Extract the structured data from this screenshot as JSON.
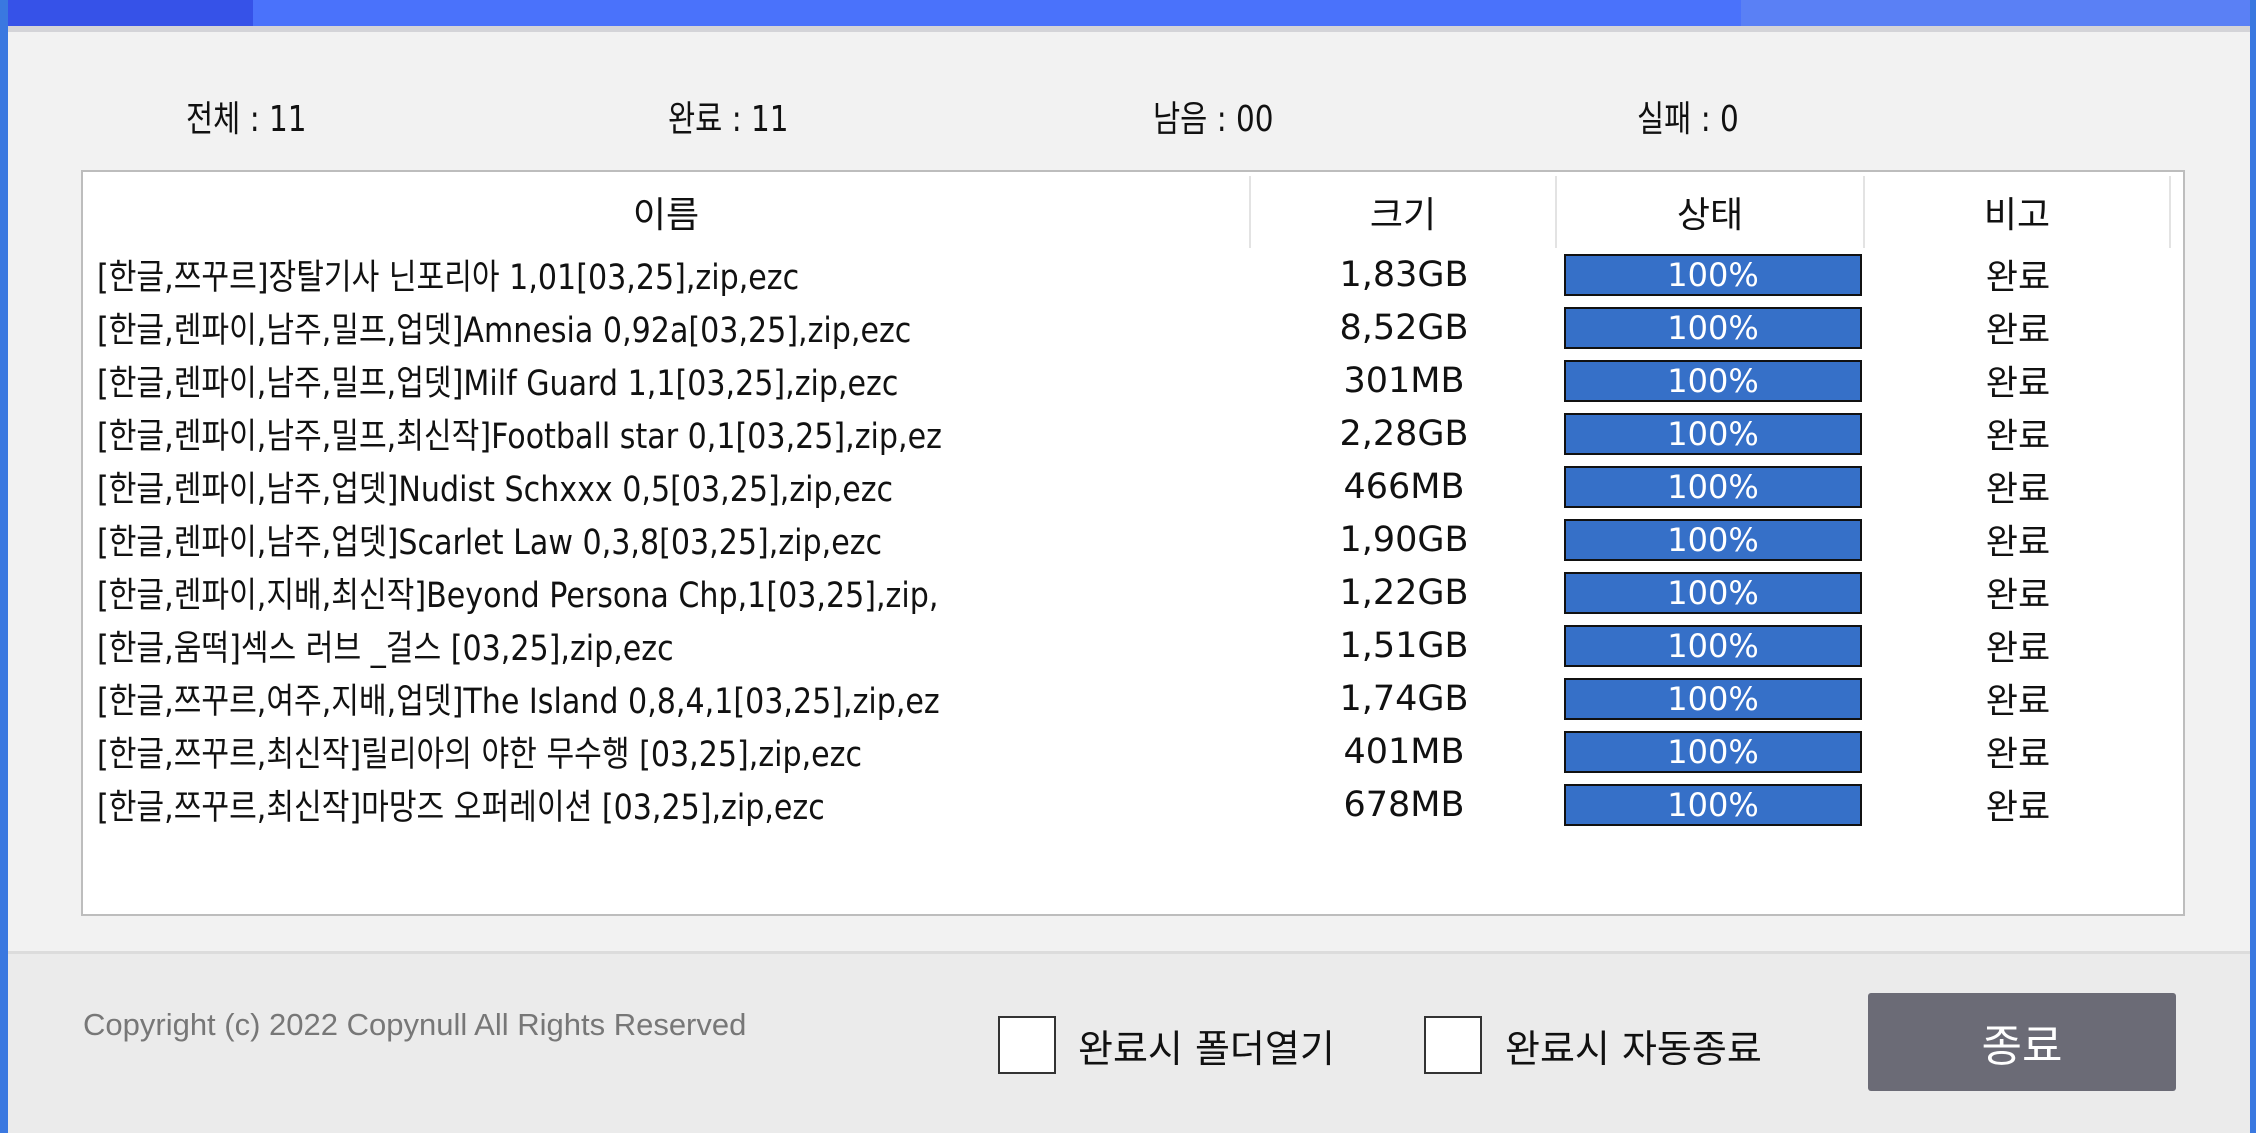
{
  "stats": {
    "total": "전체 : 11",
    "done": "완료 : 11",
    "remaining": "남음 : 00",
    "failed": "실패 : 0"
  },
  "table": {
    "headers": [
      "이름",
      "크기",
      "상태",
      "비고"
    ],
    "rows": [
      {
        "name": "[한글,쯔꾸르]장탈기사 닌포리아 1,01[03,25],zip,ezc",
        "size": "1,83GB",
        "progress": 100,
        "progress_label": "100%",
        "note": "완료"
      },
      {
        "name": "[한글,렌파이,남주,밀프,업뎃]Amnesia 0,92a[03,25],zip,ezc",
        "size": "8,52GB",
        "progress": 100,
        "progress_label": "100%",
        "note": "완료"
      },
      {
        "name": "[한글,렌파이,남주,밀프,업뎃]Milf Guard 1,1[03,25],zip,ezc",
        "size": "301MB",
        "progress": 100,
        "progress_label": "100%",
        "note": "완료"
      },
      {
        "name": "[한글,렌파이,남주,밀프,최신작]Football star 0,1[03,25],zip,ez",
        "size": "2,28GB",
        "progress": 100,
        "progress_label": "100%",
        "note": "완료"
      },
      {
        "name": "[한글,렌파이,남주,업뎃]Nudist Schxxx 0,5[03,25],zip,ezc",
        "size": "466MB",
        "progress": 100,
        "progress_label": "100%",
        "note": "완료"
      },
      {
        "name": "[한글,렌파이,남주,업뎃]Scarlet Law 0,3,8[03,25],zip,ezc",
        "size": "1,90GB",
        "progress": 100,
        "progress_label": "100%",
        "note": "완료"
      },
      {
        "name": "[한글,렌파이,지배,최신작]Beyond Persona Chp,1[03,25],zip,",
        "size": "1,22GB",
        "progress": 100,
        "progress_label": "100%",
        "note": "완료"
      },
      {
        "name": "[한글,움떡]섹스 러브 _걸스 [03,25],zip,ezc",
        "size": "1,51GB",
        "progress": 100,
        "progress_label": "100%",
        "note": "완료"
      },
      {
        "name": "[한글,쯔꾸르,여주,지배,업뎃]The Island 0,8,4,1[03,25],zip,ez",
        "size": "1,74GB",
        "progress": 100,
        "progress_label": "100%",
        "note": "완료"
      },
      {
        "name": "[한글,쯔꾸르,최신작]릴리아의 야한 무수행 [03,25],zip,ezc",
        "size": "401MB",
        "progress": 100,
        "progress_label": "100%",
        "note": "완료"
      },
      {
        "name": "[한글,쯔꾸르,최신작]마망즈 오퍼레이션 [03,25],zip,ezc",
        "size": "678MB",
        "progress": 100,
        "progress_label": "100%",
        "note": "완료"
      }
    ]
  },
  "footer": {
    "copyright": "Copyright (c) 2022 Copynull All Rights Reserved",
    "open_folder_label": "완료시 폴더열기",
    "open_folder_checked": false,
    "auto_exit_label": "완료시 자동종료",
    "auto_exit_checked": false,
    "exit_button": "종료"
  },
  "colors": {
    "titlebar": "#4a72fb",
    "progress_fill": "#3670c8",
    "exit_button": "#6b6b76"
  }
}
